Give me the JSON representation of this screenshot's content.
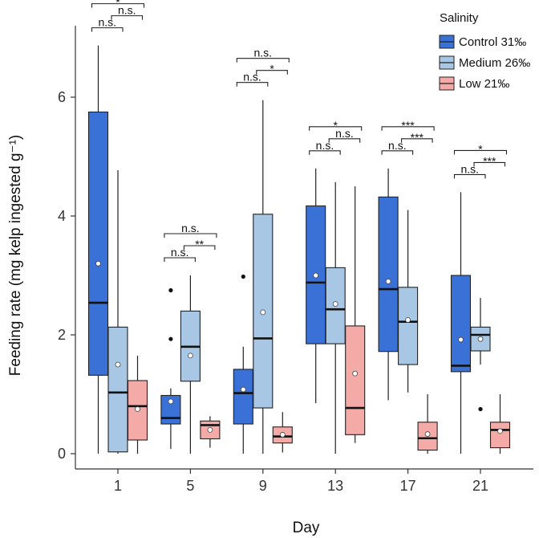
{
  "chart_data": {
    "type": "box",
    "xlabel": "Day",
    "ylabel": "Feeding rate (mg kelp ingested g⁻¹)",
    "ylim": [
      0,
      7.2
    ],
    "yticks": [
      "0",
      "2",
      "4",
      "6"
    ],
    "categories": [
      "1",
      "5",
      "9",
      "13",
      "17",
      "21"
    ],
    "legend": {
      "title": "Salinity",
      "position": "top-right",
      "entries": [
        "Control 31‰",
        "Medium 26‰",
        "Low 21‰"
      ]
    },
    "series": [
      {
        "name": "Control 31‰",
        "color": "#3a71d6",
        "boxes": [
          {
            "min": 0.0,
            "q1": 1.32,
            "median": 2.54,
            "q3": 5.75,
            "max": 6.87,
            "mean": 3.2,
            "outliers": []
          },
          {
            "min": 0.08,
            "q1": 0.5,
            "median": 0.6,
            "q3": 0.98,
            "max": 1.1,
            "mean": 0.88,
            "outliers": [
              2.75,
              1.93
            ]
          },
          {
            "min": 0.0,
            "q1": 0.5,
            "median": 1.02,
            "q3": 1.42,
            "max": 1.8,
            "mean": 1.08,
            "outliers": [
              2.98
            ]
          },
          {
            "min": 0.85,
            "q1": 1.85,
            "median": 2.88,
            "q3": 4.17,
            "max": 4.8,
            "mean": 3.0,
            "outliers": []
          },
          {
            "min": 0.9,
            "q1": 1.72,
            "median": 2.77,
            "q3": 4.32,
            "max": 4.8,
            "mean": 2.9,
            "outliers": []
          },
          {
            "min": 0.0,
            "q1": 1.38,
            "median": 1.48,
            "q3": 3.0,
            "max": 4.4,
            "mean": 1.92,
            "outliers": []
          }
        ]
      },
      {
        "name": "Medium 26‰",
        "color": "#a8c7e4",
        "boxes": [
          {
            "min": 0.0,
            "q1": 0.03,
            "median": 1.03,
            "q3": 2.13,
            "max": 4.77,
            "mean": 1.5,
            "outliers": []
          },
          {
            "min": 0.0,
            "q1": 1.22,
            "median": 1.8,
            "q3": 2.4,
            "max": 3.0,
            "mean": 1.65,
            "outliers": []
          },
          {
            "min": 0.0,
            "q1": 0.77,
            "median": 1.94,
            "q3": 4.03,
            "max": 5.95,
            "mean": 2.38,
            "outliers": []
          },
          {
            "min": 0.0,
            "q1": 1.85,
            "median": 2.43,
            "q3": 3.13,
            "max": 4.57,
            "mean": 2.52,
            "outliers": []
          },
          {
            "min": 1.03,
            "q1": 1.5,
            "median": 2.22,
            "q3": 2.8,
            "max": 4.1,
            "mean": 2.25,
            "outliers": []
          },
          {
            "min": 1.5,
            "q1": 1.73,
            "median": 2.0,
            "q3": 2.13,
            "max": 2.62,
            "mean": 1.93,
            "outliers": [
              0.75
            ]
          }
        ]
      },
      {
        "name": "Low 21‰",
        "color": "#f4aaa6",
        "boxes": [
          {
            "min": 0.0,
            "q1": 0.23,
            "median": 0.8,
            "q3": 1.23,
            "max": 1.65,
            "mean": 0.75,
            "outliers": []
          },
          {
            "min": 0.1,
            "q1": 0.25,
            "median": 0.48,
            "q3": 0.55,
            "max": 0.63,
            "mean": 0.4,
            "outliers": []
          },
          {
            "min": 0.02,
            "q1": 0.18,
            "median": 0.29,
            "q3": 0.45,
            "max": 0.7,
            "mean": 0.32,
            "outliers": []
          },
          {
            "min": 0.18,
            "q1": 0.32,
            "median": 0.77,
            "q3": 2.15,
            "max": 4.5,
            "mean": 1.35,
            "outliers": []
          },
          {
            "min": 0.0,
            "q1": 0.06,
            "median": 0.26,
            "q3": 0.53,
            "max": 1.0,
            "mean": 0.33,
            "outliers": []
          },
          {
            "min": 0.0,
            "q1": 0.1,
            "median": 0.4,
            "q3": 0.53,
            "max": 1.0,
            "mean": 0.38,
            "outliers": []
          }
        ]
      }
    ],
    "significance": [
      {
        "day": "1",
        "pairs": [
          {
            "from": 0,
            "to": 1,
            "label": "n.s.",
            "level": 0
          },
          {
            "from": 1,
            "to": 2,
            "label": "n.s.",
            "level": 1
          },
          {
            "from": 0,
            "to": 2,
            "label": "*",
            "level": 2
          }
        ]
      },
      {
        "day": "5",
        "pairs": [
          {
            "from": 0,
            "to": 1,
            "label": "n.s.",
            "level": 0
          },
          {
            "from": 1,
            "to": 2,
            "label": "**",
            "level": 1
          },
          {
            "from": 0,
            "to": 2,
            "label": "n.s.",
            "level": 2
          }
        ]
      },
      {
        "day": "9",
        "pairs": [
          {
            "from": 0,
            "to": 1,
            "label": "n.s.",
            "level": 0
          },
          {
            "from": 1,
            "to": 2,
            "label": "*",
            "level": 1
          },
          {
            "from": 0,
            "to": 2,
            "label": "n.s.",
            "level": 2
          }
        ]
      },
      {
        "day": "13",
        "pairs": [
          {
            "from": 0,
            "to": 1,
            "label": "n.s.",
            "level": 0
          },
          {
            "from": 1,
            "to": 2,
            "label": "n.s.",
            "level": 1
          },
          {
            "from": 0,
            "to": 2,
            "label": "*",
            "level": 2
          }
        ]
      },
      {
        "day": "17",
        "pairs": [
          {
            "from": 0,
            "to": 1,
            "label": "n.s.",
            "level": 0
          },
          {
            "from": 1,
            "to": 2,
            "label": "***",
            "level": 1
          },
          {
            "from": 0,
            "to": 2,
            "label": "***",
            "level": 2
          }
        ]
      },
      {
        "day": "21",
        "pairs": [
          {
            "from": 0,
            "to": 1,
            "label": "n.s.",
            "level": 0
          },
          {
            "from": 1,
            "to": 2,
            "label": "***",
            "level": 1
          },
          {
            "from": 0,
            "to": 2,
            "label": "*",
            "level": 2
          }
        ]
      }
    ]
  }
}
